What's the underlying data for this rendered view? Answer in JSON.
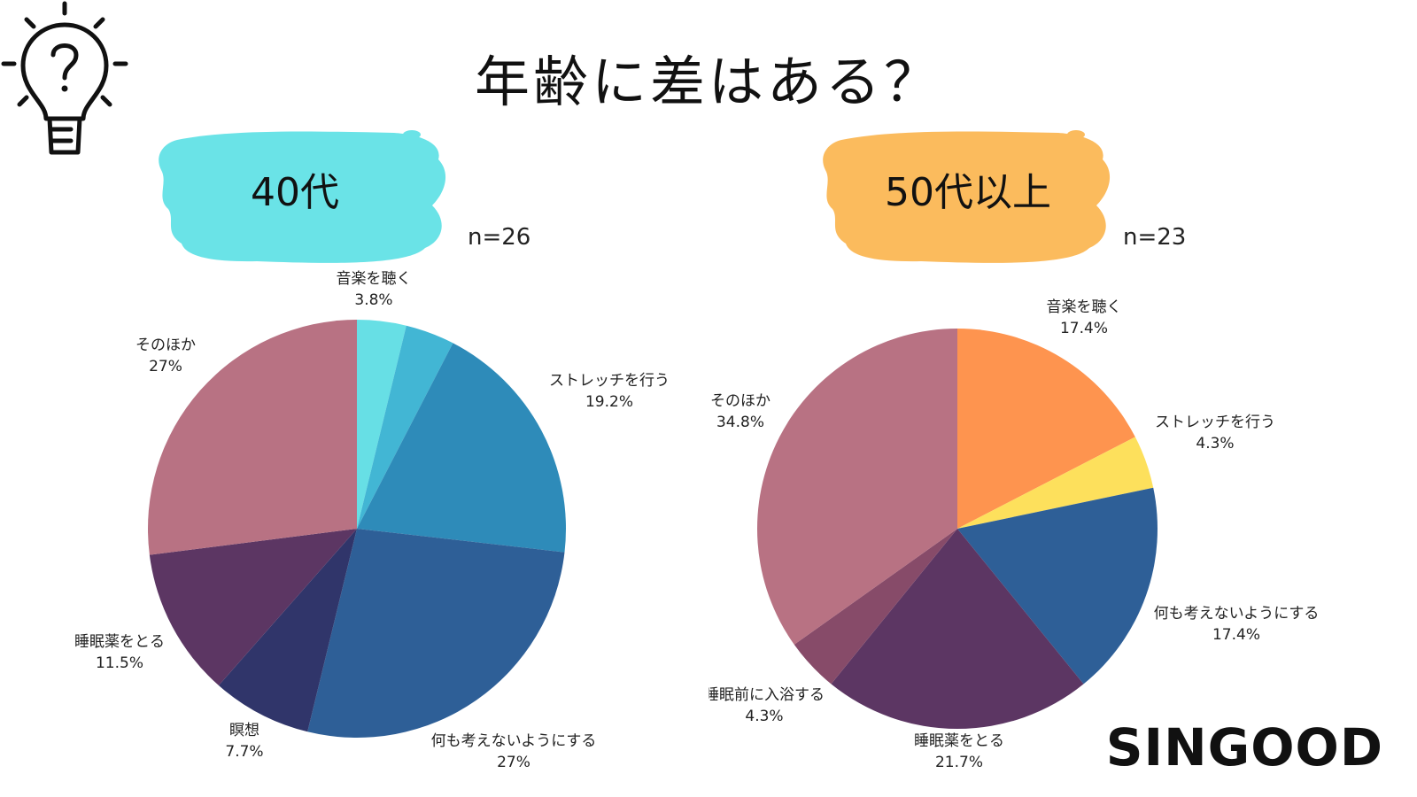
{
  "title": "年齢に差はある？",
  "brand": "SINGOOD",
  "icons": {
    "top_left": "lightbulb-question-icon"
  },
  "colors": {
    "badge_40": "#6ae3e7",
    "badge_50": "#fbbb5d",
    "text": "#111111"
  },
  "chart_data": [
    {
      "type": "pie",
      "title": "40代",
      "n_label": "n=26",
      "slices": [
        {
          "label": "音楽を聴く",
          "value": 3.8,
          "pct": "3.8%",
          "color": "#67dfe5"
        },
        {
          "label": "",
          "value": 3.8,
          "pct": "",
          "color": "#42b6d4"
        },
        {
          "label": "ストレッチを行う",
          "value": 19.2,
          "pct": "19.2%",
          "color": "#2e8bb9"
        },
        {
          "label": "何も考えないようにする",
          "value": 27,
          "pct": "27%",
          "color": "#2e5f97"
        },
        {
          "label": "瞑想",
          "value": 7.7,
          "pct": "7.7%",
          "color": "#30356a"
        },
        {
          "label": "睡眠薬をとる",
          "value": 11.5,
          "pct": "11.5%",
          "color": "#5c3663"
        },
        {
          "label": "そのほか",
          "value": 27,
          "pct": "27%",
          "color": "#b87283"
        }
      ]
    },
    {
      "type": "pie",
      "title": "50代以上",
      "n_label": "n=23",
      "slices": [
        {
          "label": "音楽を聴く",
          "value": 17.4,
          "pct": "17.4%",
          "color": "#fe944f"
        },
        {
          "label": "ストレッチを行う",
          "value": 4.3,
          "pct": "4.3%",
          "color": "#fde05c"
        },
        {
          "label": "何も考えないようにする",
          "value": 17.4,
          "pct": "17.4%",
          "color": "#2e5f97"
        },
        {
          "label": "睡眠薬をとる",
          "value": 21.7,
          "pct": "21.7%",
          "color": "#5c3663"
        },
        {
          "label": "睡眠前に入浴する",
          "value": 4.3,
          "pct": "4.3%",
          "color": "#874b69"
        },
        {
          "label": "そのほか",
          "value": 34.8,
          "pct": "34.8%",
          "color": "#b87283"
        }
      ]
    }
  ]
}
